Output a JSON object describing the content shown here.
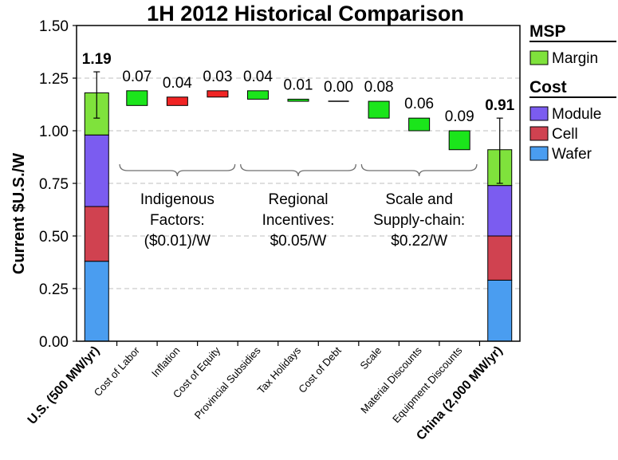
{
  "chart_data": {
    "type": "waterfall",
    "title": "1H 2012 Historical Comparison",
    "ylabel": "Current $U.S./W",
    "xlabel": "",
    "ylim": [
      0,
      1.5
    ],
    "yticks": [
      "0.00",
      "0.25",
      "0.50",
      "0.75",
      "1.00",
      "1.25",
      "1.50"
    ],
    "ytick_values": [
      0,
      0.25,
      0.5,
      0.75,
      1.0,
      1.25,
      1.5
    ],
    "grid": true,
    "colors": {
      "margin": "#7fe23c",
      "module": "#7b5cf0",
      "cell": "#d04250",
      "wafer": "#4a9df0",
      "positive_step": "#1be51b",
      "negative_step": "#f02424",
      "grid": "#bfbfbf"
    },
    "categories": [
      "U.S. (500 MW/yr)",
      "Cost of Labor",
      "Inflation",
      "Cost of Equity",
      "Provincial Subsidies",
      "Tax Holidays",
      "Cost of Debt",
      "Scale",
      "Material Discounts",
      "Equipment Discounts",
      "China (2,000 MW/yr)"
    ],
    "stacked_bars": [
      {
        "category": "U.S. (500 MW/yr)",
        "wafer": 0.38,
        "cell": 0.26,
        "module": 0.34,
        "margin": 0.2,
        "total": 1.19,
        "total_label": "1.19",
        "error": [
          1.06,
          1.28
        ]
      },
      {
        "category": "China (2,000 MW/yr)",
        "wafer": 0.29,
        "cell": 0.21,
        "module": 0.24,
        "margin": 0.17,
        "total": 0.91,
        "total_label": "0.91",
        "error": [
          0.75,
          1.06
        ]
      }
    ],
    "steps": [
      {
        "category": "Cost of Labor",
        "low": 1.12,
        "high": 1.19,
        "label": "0.07",
        "sign": "down"
      },
      {
        "category": "Inflation",
        "low": 1.12,
        "high": 1.16,
        "label": "0.04",
        "sign": "up"
      },
      {
        "category": "Cost of Equity",
        "low": 1.16,
        "high": 1.19,
        "label": "0.03",
        "sign": "up"
      },
      {
        "category": "Provincial Subsidies",
        "low": 1.15,
        "high": 1.19,
        "label": "0.04",
        "sign": "down"
      },
      {
        "category": "Tax Holidays",
        "low": 1.14,
        "high": 1.15,
        "label": "0.01",
        "sign": "down"
      },
      {
        "category": "Cost of Debt",
        "low": 1.14,
        "high": 1.14,
        "label": "0.00",
        "sign": "down"
      },
      {
        "category": "Scale",
        "low": 1.06,
        "high": 1.14,
        "label": "0.08",
        "sign": "down"
      },
      {
        "category": "Material Discounts",
        "low": 1.0,
        "high": 1.06,
        "label": "0.06",
        "sign": "down"
      },
      {
        "category": "Equipment Discounts",
        "low": 0.91,
        "high": 1.0,
        "label": "0.09",
        "sign": "down"
      }
    ],
    "groups": [
      {
        "from": "Cost of Labor",
        "to": "Cost of Equity",
        "lines": [
          "Indigenous",
          "Factors:",
          "($0.01)/W"
        ]
      },
      {
        "from": "Provincial Subsidies",
        "to": "Cost of Debt",
        "lines": [
          "Regional",
          "Incentives:",
          "$0.05/W"
        ]
      },
      {
        "from": "Scale",
        "to": "Equipment Discounts",
        "lines": [
          "Scale and",
          "Supply-chain:",
          "$0.22/W"
        ]
      }
    ],
    "legend": {
      "sections": [
        {
          "heading": "MSP",
          "items": [
            {
              "label": "Margin",
              "key": "margin"
            }
          ]
        },
        {
          "heading": "Cost",
          "items": [
            {
              "label": "Module",
              "key": "module"
            },
            {
              "label": "Cell",
              "key": "cell"
            },
            {
              "label": "Wafer",
              "key": "wafer"
            }
          ]
        }
      ],
      "placement": "right"
    }
  }
}
